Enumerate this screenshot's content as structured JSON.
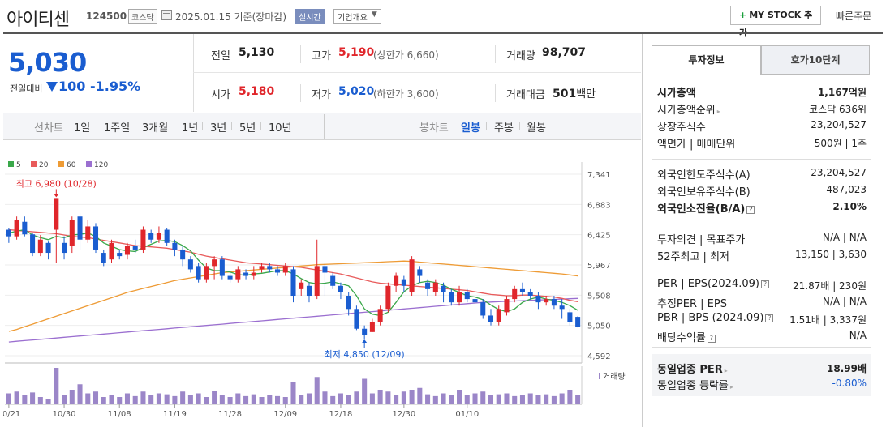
{
  "header": {
    "name": "아이티센",
    "code": "124500",
    "market": "코스닥",
    "date": "2025.01.15 기준(장마감)",
    "realtime": "실시간",
    "corp_info": "기업개요",
    "mystock": "MY STOCK 추가",
    "quick_order": "빠른주문"
  },
  "price": {
    "current": "5,030",
    "diff_label": "전일대비",
    "diff": "100",
    "pct": "-1.95%"
  },
  "quote": {
    "prev_label": "전일",
    "prev": "5,130",
    "high_label": "고가",
    "high": "5,190",
    "upper_limit": "(상한가 6,660)",
    "volume_label": "거래량",
    "volume": "98,707",
    "open_label": "시가",
    "open": "5,180",
    "low_label": "저가",
    "low": "5,020",
    "lower_limit": "(하한가 3,600)",
    "amount_label": "거래대금",
    "amount": "501",
    "amount_unit": "백만"
  },
  "periods": {
    "line_label": "선차트",
    "items": [
      "1일",
      "1주일",
      "3개월",
      "1년",
      "3년",
      "5년",
      "10년"
    ],
    "candle_label": "봉차트",
    "candle_items": [
      "일봉",
      "주봉",
      "월봉"
    ],
    "selected": "일봉"
  },
  "chart_data": {
    "type": "candlestick",
    "legend": [
      {
        "name": "5",
        "color": "#3aa84a"
      },
      {
        "name": "20",
        "color": "#e85a5a"
      },
      {
        "name": "60",
        "color": "#ee9b35"
      },
      {
        "name": "120",
        "color": "#9b6fd0"
      }
    ],
    "yticks": [
      "7,341",
      "6,883",
      "6,425",
      "5,967",
      "5,508",
      "5,050",
      "4,592"
    ],
    "ylim": [
      4592,
      7341
    ],
    "xticks": [
      "10/21",
      "10/30",
      "11/08",
      "11/19",
      "11/28",
      "12/09",
      "12/18",
      "12/30",
      "01/10"
    ],
    "max_annotation": "최고 6,980 (10/28)",
    "min_annotation": "최저 4,850 (12/09)",
    "volume_label": "거래량",
    "candles": [
      {
        "o": 6500,
        "c": 6400,
        "h": 6520,
        "l": 6300
      },
      {
        "o": 6400,
        "c": 6650,
        "h": 6700,
        "l": 6350
      },
      {
        "o": 6620,
        "c": 6430,
        "h": 6700,
        "l": 6400
      },
      {
        "o": 6430,
        "c": 6150,
        "h": 6450,
        "l": 6100
      },
      {
        "o": 6150,
        "c": 6350,
        "h": 6420,
        "l": 6100
      },
      {
        "o": 6300,
        "c": 6150,
        "h": 6320,
        "l": 6050
      },
      {
        "o": 6500,
        "c": 6980,
        "h": 6980,
        "l": 6000
      },
      {
        "o": 6300,
        "c": 6150,
        "h": 6400,
        "l": 6050
      },
      {
        "o": 6250,
        "c": 6650,
        "h": 6700,
        "l": 6150
      },
      {
        "o": 6700,
        "c": 6350,
        "h": 6750,
        "l": 6200
      },
      {
        "o": 6350,
        "c": 6550,
        "h": 6650,
        "l": 6300
      },
      {
        "o": 6550,
        "c": 6200,
        "h": 6600,
        "l": 6150
      },
      {
        "o": 6150,
        "c": 6000,
        "h": 6200,
        "l": 5950
      },
      {
        "o": 6050,
        "c": 6300,
        "h": 6350,
        "l": 6000
      },
      {
        "o": 6150,
        "c": 6100,
        "h": 6200,
        "l": 6050
      },
      {
        "o": 6120,
        "c": 6250,
        "h": 6300,
        "l": 6050
      },
      {
        "o": 6250,
        "c": 6200,
        "h": 6350,
        "l": 6150
      },
      {
        "o": 6200,
        "c": 6500,
        "h": 6550,
        "l": 6150
      },
      {
        "o": 6450,
        "c": 6350,
        "h": 6500,
        "l": 6300
      },
      {
        "o": 6350,
        "c": 6450,
        "h": 6550,
        "l": 6300
      },
      {
        "o": 6500,
        "c": 6300,
        "h": 6520,
        "l": 6250
      },
      {
        "o": 6300,
        "c": 6200,
        "h": 6350,
        "l": 6100
      },
      {
        "o": 6200,
        "c": 6050,
        "h": 6250,
        "l": 5950
      },
      {
        "o": 6050,
        "c": 5900,
        "h": 6100,
        "l": 5850
      },
      {
        "o": 5950,
        "c": 5750,
        "h": 6000,
        "l": 5700
      },
      {
        "o": 5750,
        "c": 5950,
        "h": 6000,
        "l": 5700
      },
      {
        "o": 5950,
        "c": 6050,
        "h": 6100,
        "l": 5750
      },
      {
        "o": 6050,
        "c": 5800,
        "h": 6100,
        "l": 5750
      },
      {
        "o": 5800,
        "c": 5750,
        "h": 5850,
        "l": 5700
      },
      {
        "o": 5750,
        "c": 5900,
        "h": 5950,
        "l": 5700
      },
      {
        "o": 5850,
        "c": 5800,
        "h": 5900,
        "l": 5750
      },
      {
        "o": 5800,
        "c": 5850,
        "h": 5950,
        "l": 5750
      },
      {
        "o": 5900,
        "c": 5950,
        "h": 6000,
        "l": 5850
      },
      {
        "o": 5950,
        "c": 5900,
        "h": 6000,
        "l": 5850
      },
      {
        "o": 5900,
        "c": 5850,
        "h": 5950,
        "l": 5800
      },
      {
        "o": 5850,
        "c": 5950,
        "h": 6000,
        "l": 5800
      },
      {
        "o": 5900,
        "c": 5500,
        "h": 5950,
        "l": 5400
      },
      {
        "o": 5600,
        "c": 5700,
        "h": 5750,
        "l": 5500
      },
      {
        "o": 5650,
        "c": 5500,
        "h": 5700,
        "l": 5400
      },
      {
        "o": 5500,
        "c": 5950,
        "h": 6350,
        "l": 5450
      },
      {
        "o": 5950,
        "c": 5850,
        "h": 6000,
        "l": 5500
      },
      {
        "o": 5800,
        "c": 5650,
        "h": 5850,
        "l": 5600
      },
      {
        "o": 5650,
        "c": 5550,
        "h": 5700,
        "l": 5450
      },
      {
        "o": 5500,
        "c": 5300,
        "h": 5550,
        "l": 5200
      },
      {
        "o": 5300,
        "c": 5000,
        "h": 5350,
        "l": 4980
      },
      {
        "o": 5000,
        "c": 4900,
        "h": 5050,
        "l": 4850
      },
      {
        "o": 4950,
        "c": 5100,
        "h": 5150,
        "l": 4950
      },
      {
        "o": 5100,
        "c": 5300,
        "h": 5350,
        "l": 5050
      },
      {
        "o": 5300,
        "c": 5650,
        "h": 5700,
        "l": 5250
      },
      {
        "o": 5650,
        "c": 5800,
        "h": 5850,
        "l": 5550
      },
      {
        "o": 5750,
        "c": 5650,
        "h": 5800,
        "l": 5550
      },
      {
        "o": 5550,
        "c": 6050,
        "h": 6100,
        "l": 5500
      },
      {
        "o": 5900,
        "c": 5800,
        "h": 5950,
        "l": 5700
      },
      {
        "o": 5700,
        "c": 5600,
        "h": 5750,
        "l": 5500
      },
      {
        "o": 5550,
        "c": 5700,
        "h": 5750,
        "l": 5500
      },
      {
        "o": 5650,
        "c": 5550,
        "h": 5700,
        "l": 5400
      },
      {
        "o": 5550,
        "c": 5400,
        "h": 5600,
        "l": 5350
      },
      {
        "o": 5400,
        "c": 5550,
        "h": 5650,
        "l": 5350
      },
      {
        "o": 5550,
        "c": 5450,
        "h": 5600,
        "l": 5400
      },
      {
        "o": 5450,
        "c": 5400,
        "h": 5500,
        "l": 5300
      },
      {
        "o": 5400,
        "c": 5200,
        "h": 5450,
        "l": 5150
      },
      {
        "o": 5200,
        "c": 5100,
        "h": 5300,
        "l": 5050
      },
      {
        "o": 5100,
        "c": 5300,
        "h": 5350,
        "l": 5050
      },
      {
        "o": 5250,
        "c": 5450,
        "h": 5500,
        "l": 5200
      },
      {
        "o": 5450,
        "c": 5600,
        "h": 5650,
        "l": 5400
      },
      {
        "o": 5600,
        "c": 5550,
        "h": 5700,
        "l": 5500
      },
      {
        "o": 5550,
        "c": 5500,
        "h": 5600,
        "l": 5450
      },
      {
        "o": 5500,
        "c": 5400,
        "h": 5550,
        "l": 5300
      },
      {
        "o": 5400,
        "c": 5450,
        "h": 5500,
        "l": 5350
      },
      {
        "o": 5450,
        "c": 5350,
        "h": 5500,
        "l": 5300
      },
      {
        "o": 5350,
        "c": 5300,
        "h": 5450,
        "l": 5150
      },
      {
        "o": 5250,
        "c": 5100,
        "h": 5300,
        "l": 5050
      },
      {
        "o": 5180,
        "c": 5030,
        "h": 5190,
        "l": 5020
      }
    ],
    "ma5": [
      6450,
      6480,
      6500,
      6420,
      6380,
      6350,
      6400,
      6380,
      6420,
      6430,
      6450,
      6400,
      6300,
      6250,
      6200,
      6180,
      6170,
      6230,
      6280,
      6330,
      6340,
      6320,
      6260,
      6180,
      6040,
      5920,
      5880,
      5880,
      5860,
      5820,
      5810,
      5830,
      5840,
      5860,
      5880,
      5880,
      5830,
      5760,
      5700,
      5680,
      5690,
      5710,
      5680,
      5650,
      5500,
      5300,
      5220,
      5200,
      5250,
      5400,
      5560,
      5650,
      5700,
      5720,
      5700,
      5660,
      5600,
      5550,
      5500,
      5480,
      5440,
      5360,
      5290,
      5260,
      5300,
      5400,
      5450,
      5480,
      5450,
      5430,
      5400,
      5350,
      5280
    ],
    "ma20": [
      6500,
      6490,
      6480,
      6470,
      6460,
      6450,
      6440,
      6420,
      6400,
      6390,
      6380,
      6360,
      6340,
      6320,
      6300,
      6280,
      6260,
      6250,
      6240,
      6230,
      6220,
      6200,
      6180,
      6160,
      6130,
      6100,
      6080,
      6060,
      6040,
      6020,
      6000,
      5990,
      5980,
      5970,
      5960,
      5950,
      5940,
      5930,
      5910,
      5890,
      5870,
      5850,
      5830,
      5800,
      5770,
      5740,
      5710,
      5690,
      5680,
      5670,
      5660,
      5650,
      5640,
      5630,
      5620,
      5610,
      5600,
      5590,
      5580,
      5560,
      5540,
      5520,
      5510,
      5500,
      5500,
      5510,
      5510,
      5500,
      5490,
      5480,
      5460,
      5430,
      5410
    ],
    "ma60": [
      4960,
      4990,
      5030,
      5070,
      5110,
      5150,
      5190,
      5230,
      5270,
      5310,
      5350,
      5390,
      5430,
      5470,
      5510,
      5550,
      5580,
      5610,
      5640,
      5670,
      5700,
      5730,
      5750,
      5770,
      5790,
      5810,
      5830,
      5850,
      5860,
      5870,
      5880,
      5890,
      5900,
      5910,
      5920,
      5930,
      5940,
      5950,
      5960,
      5970,
      5975,
      5980,
      5985,
      5990,
      5995,
      6000,
      6005,
      6010,
      6015,
      6020,
      6025,
      6020,
      6010,
      6000,
      5990,
      5980,
      5970,
      5960,
      5950,
      5940,
      5930,
      5920,
      5910,
      5900,
      5890,
      5880,
      5870,
      5860,
      5850,
      5840,
      5830,
      5815,
      5800
    ],
    "ma120": [
      4800,
      4810,
      4820,
      4830,
      4840,
      4850,
      4860,
      4870,
      4880,
      4890,
      4900,
      4910,
      4920,
      4930,
      4940,
      4950,
      4960,
      4970,
      4980,
      4990,
      5000,
      5010,
      5020,
      5030,
      5040,
      5050,
      5060,
      5070,
      5080,
      5090,
      5100,
      5110,
      5120,
      5130,
      5140,
      5150,
      5160,
      5170,
      5180,
      5190,
      5200,
      5210,
      5220,
      5230,
      5240,
      5250,
      5260,
      5270,
      5280,
      5290,
      5300,
      5310,
      5320,
      5330,
      5340,
      5350,
      5360,
      5370,
      5380,
      5390,
      5400,
      5405,
      5410,
      5415,
      5420,
      5425,
      5430,
      5435,
      5440,
      5445,
      5450,
      5455,
      5460
    ],
    "volumes": [
      12,
      14,
      10,
      13,
      8,
      6,
      40,
      10,
      16,
      22,
      12,
      14,
      8,
      10,
      8,
      12,
      9,
      14,
      10,
      12,
      11,
      9,
      14,
      10,
      12,
      8,
      15,
      10,
      8,
      12,
      9,
      11,
      8,
      10,
      9,
      8,
      24,
      10,
      12,
      30,
      14,
      9,
      12,
      10,
      14,
      28,
      12,
      16,
      14,
      10,
      14,
      16,
      18,
      11,
      9,
      12,
      10,
      16,
      10,
      12,
      14,
      10,
      11,
      12,
      9,
      10,
      12,
      10,
      11,
      9,
      12,
      16,
      10
    ]
  },
  "panel": {
    "tab_info": "투자정보",
    "tab_orderbook": "호가10단계",
    "rows1": [
      {
        "k": "시가총액",
        "v": "1,167억원"
      },
      {
        "k": "시가총액순위",
        "v": "코스닥 636위"
      },
      {
        "k": "상장주식수",
        "v": "23,204,527"
      },
      {
        "k": "액면가 | 매매단위",
        "v": "500원 | 1주"
      }
    ],
    "rows2": [
      {
        "k": "외국인한도주식수(A)",
        "v": "23,204,527"
      },
      {
        "k": "외국인보유주식수(B)",
        "v": "487,023"
      },
      {
        "k": "외국인소진율(B/A)",
        "v": "2.10%"
      }
    ],
    "rows3": [
      {
        "k": "투자의견 | 목표주가",
        "v": "N/A | N/A"
      },
      {
        "k": "52주최고 | 최저",
        "v": "13,150 | 3,630"
      }
    ],
    "rows4": [
      {
        "k": "PER | EPS(2024.09)",
        "v": "21.87배 | 230원"
      },
      {
        "k": "추정PER | EPS",
        "v": "N/A | N/A"
      },
      {
        "k": "PBR | BPS (2024.09)",
        "v": "1.51배 | 3,337원"
      },
      {
        "k": "배당수익률",
        "v": "N/A"
      }
    ],
    "rows5": [
      {
        "k": "동일업종 PER",
        "v": "18.99배"
      },
      {
        "k": "동일업종 등락률",
        "v": "-0.80%"
      }
    ]
  }
}
